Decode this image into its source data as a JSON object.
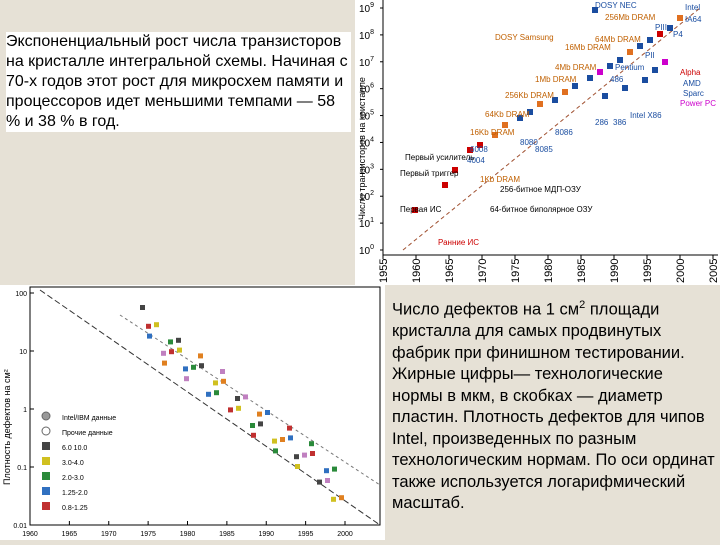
{
  "text_top": "Экспоненциальный рост числа транзисторов на кристалле интегральной схемы. Начиная с 70-х годов этот рост для микросхем памяти и процессоров идет меньшими темпами — 58 % и 38 % в год.",
  "text_bottom": {
    "part1": "Число дефектов на 1 см",
    "sup": "2",
    "part2": " площади кристалла для самых продвинутых фабрик при финишном тестировании. Жирные цифры— технологические нормы в мкм, в скобках — диаметр пластин. Плотность дефектов для чипов Intel, произведенных по разным технологическим нормам. По оси ординат также используется логарифмический масштаб."
  },
  "figure_top": {
    "y_axis_label": "Число транзисторов на кристалле",
    "y_ticks": [
      {
        "base": "10",
        "exponent": "9"
      },
      {
        "base": "10",
        "exponent": "8"
      },
      {
        "base": "10",
        "exponent": "7"
      },
      {
        "base": "10",
        "exponent": "6"
      },
      {
        "base": "10",
        "exponent": "5"
      },
      {
        "base": "10",
        "exponent": "4"
      },
      {
        "base": "10",
        "exponent": "3"
      },
      {
        "base": "10",
        "exponent": "2"
      },
      {
        "base": "10",
        "exponent": "1"
      },
      {
        "base": "10",
        "exponent": "0"
      }
    ],
    "x_ticks": [
      "1955",
      "1960",
      "1965",
      "1970",
      "1975",
      "1980",
      "1985",
      "1990",
      "1995",
      "2000",
      "2005"
    ],
    "labels": [
      "DOSY NEC",
      "256Mb DRAM",
      "Intel",
      "IA64",
      "64Mb DRAM",
      "P4",
      "DOSY Samsung",
      "16Mb DRAM",
      "PIII",
      "PII",
      "4Mb DRAM",
      "Pentium",
      "Alpha",
      "AMD",
      "Sparc",
      "Power PC",
      "1Mb DRAM",
      "486",
      "256Kb DRAM",
      "64Kb DRAM",
      "286",
      "386",
      "Intel X86",
      "16Kb DRAM",
      "8086",
      "8080",
      "8085",
      "6008",
      "4004",
      "Первый усилитель",
      "1Kb DRAM",
      "Первый триггер",
      "256-битное МДП-ОЗУ",
      "Первая ИС",
      "64-битное биполярное ОЗУ",
      "Ранние ИС"
    ]
  },
  "figure_bottom": {
    "y_axis_label": "Плотность дефектов на см²",
    "y_ticks": [
      "100",
      "10",
      "1",
      "0.1",
      "0.01"
    ],
    "x_ticks": [
      "1960",
      "1965",
      "1970",
      "1975",
      "1980",
      "1985",
      "1990",
      "1995",
      "2000"
    ],
    "legend": [
      "Intel/IBM данные",
      "Прочие данные",
      "6.0 10.0",
      "3.0-4.0",
      "2.0-3.0",
      "1.25-2.0",
      "0.8-1.25"
    ]
  }
}
